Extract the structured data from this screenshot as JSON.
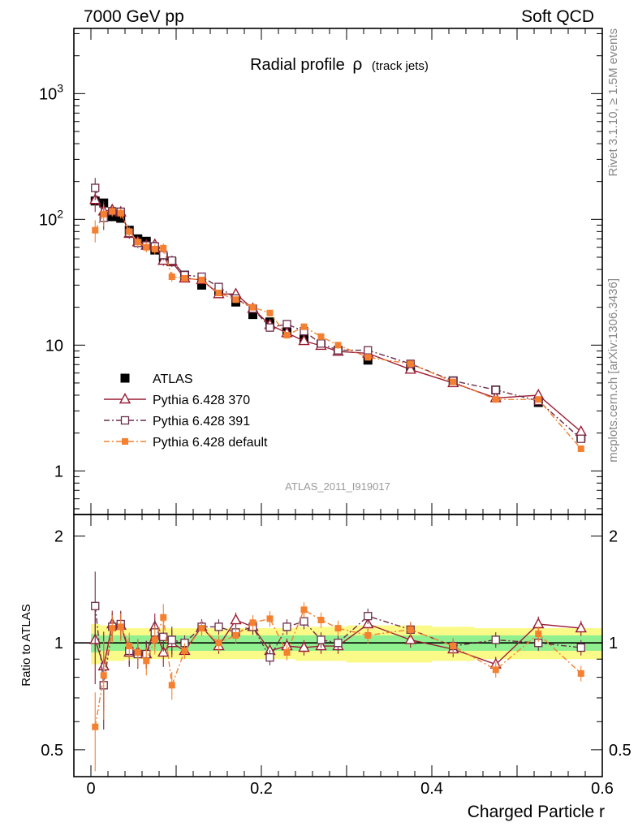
{
  "header": {
    "left": "7000 GeV pp",
    "right": "Soft QCD"
  },
  "side_text": {
    "rivet": "Rivet 3.1.10, ≥ 1.5M events",
    "mcplots": "mcplots.cern.ch [arXiv:1306.3436]"
  },
  "chart_data": [
    {
      "type": "scatter",
      "title": "Radial profile",
      "title_symbol": "ρ",
      "title_suffix": "(track jets)",
      "analysis_label": "ATLAS_2011_I919017",
      "xlabel": "Charged Particle r",
      "ylabel": "",
      "yscale": "log",
      "xlim": [
        -0.02,
        0.6
      ],
      "ylim": [
        0.45,
        3300
      ],
      "yticks": [
        1,
        10,
        100,
        1000
      ],
      "ytick_labels": [
        "1",
        "10",
        "10^2",
        "10^3"
      ],
      "legend_position": "center-left",
      "series": [
        {
          "name": "ATLAS",
          "color": "#000000",
          "marker": "filled-square",
          "line": "none",
          "x": [
            0.005,
            0.015,
            0.025,
            0.035,
            0.045,
            0.055,
            0.065,
            0.075,
            0.085,
            0.095,
            0.11,
            0.13,
            0.15,
            0.17,
            0.19,
            0.21,
            0.23,
            0.25,
            0.27,
            0.29,
            0.325,
            0.375,
            0.425,
            0.475,
            0.525,
            0.575
          ],
          "y": [
            140,
            135,
            105,
            102,
            82,
            70,
            67,
            57,
            50,
            46,
            36,
            30,
            26,
            22,
            17.5,
            15.3,
            12.7,
            11.2,
            10.1,
            9.1,
            7.6,
            6.5,
            5.2,
            4.4,
            3.5,
            1.85
          ]
        },
        {
          "name": "Pythia 6.428 370",
          "color": "#9a1c33",
          "marker": "open-triangle",
          "line": "solid",
          "x": [
            0.005,
            0.015,
            0.025,
            0.035,
            0.045,
            0.055,
            0.065,
            0.075,
            0.085,
            0.095,
            0.11,
            0.13,
            0.15,
            0.17,
            0.19,
            0.21,
            0.23,
            0.25,
            0.27,
            0.29,
            0.325,
            0.375,
            0.425,
            0.475,
            0.525,
            0.575
          ],
          "y": [
            143,
            116,
            119,
            114,
            77,
            66,
            62,
            63,
            47,
            46,
            34,
            33,
            25.5,
            25.5,
            19.5,
            14.5,
            12.5,
            10.8,
            9.9,
            8.9,
            8.6,
            6.4,
            5.0,
            3.8,
            4.0,
            2.05
          ]
        },
        {
          "name": "Pythia 6.428 391",
          "color": "#6b2d4a",
          "marker": "open-square",
          "line": "dashdot",
          "x": [
            0.005,
            0.015,
            0.025,
            0.035,
            0.045,
            0.055,
            0.065,
            0.075,
            0.085,
            0.095,
            0.11,
            0.13,
            0.15,
            0.17,
            0.19,
            0.21,
            0.23,
            0.25,
            0.27,
            0.29,
            0.325,
            0.375,
            0.425,
            0.475,
            0.525,
            0.575
          ],
          "y": [
            178,
            103,
            116,
            115,
            78,
            65,
            62,
            61,
            52,
            47,
            36,
            35,
            29,
            23.5,
            19.5,
            13.8,
            14.7,
            12.9,
            10.3,
            9.1,
            9.1,
            7.1,
            5.2,
            4.4,
            3.6,
            1.8
          ]
        },
        {
          "name": "Pythia 6.428 default",
          "color": "#f48030",
          "marker": "filled-small-square",
          "line": "dashdot",
          "x": [
            0.005,
            0.015,
            0.025,
            0.035,
            0.045,
            0.055,
            0.065,
            0.075,
            0.085,
            0.095,
            0.11,
            0.13,
            0.15,
            0.17,
            0.19,
            0.21,
            0.23,
            0.25,
            0.27,
            0.29,
            0.325,
            0.375,
            0.425,
            0.475,
            0.525,
            0.575
          ],
          "y": [
            82,
            110,
            116,
            112,
            80,
            66,
            60,
            58,
            59,
            35,
            34,
            33,
            26,
            23,
            20,
            18,
            12,
            14,
            11.7,
            10,
            8,
            7.1,
            5.1,
            3.7,
            3.7,
            1.5
          ]
        }
      ]
    },
    {
      "type": "scatter",
      "xlabel": "Charged Particle r",
      "ylabel": "Ratio to ATLAS",
      "yscale": "log",
      "xlim": [
        -0.02,
        0.6
      ],
      "ylim": [
        0.42,
        2.3
      ],
      "yticks": [
        0.5,
        1,
        2
      ],
      "ytick_labels": [
        "0.5",
        "1",
        "2"
      ],
      "xticks": [
        0,
        0.2,
        0.4,
        0.6
      ],
      "xtick_labels": [
        "0",
        "0.2",
        "0.4",
        "0.6"
      ],
      "reference_line": 1,
      "band_colors": {
        "stat": "#90f090",
        "total": "#fafa88"
      },
      "bands_x": [
        0.0,
        0.01,
        0.02,
        0.03,
        0.04,
        0.05,
        0.06,
        0.07,
        0.08,
        0.09,
        0.1,
        0.12,
        0.14,
        0.16,
        0.18,
        0.2,
        0.22,
        0.24,
        0.26,
        0.28,
        0.3,
        0.35,
        0.4,
        0.45,
        0.5,
        0.55,
        0.6
      ],
      "band_stat": [
        0.06,
        0.05,
        0.05,
        0.05,
        0.05,
        0.05,
        0.05,
        0.05,
        0.05,
        0.05,
        0.05,
        0.05,
        0.05,
        0.05,
        0.05,
        0.05,
        0.05,
        0.05,
        0.05,
        0.05,
        0.05,
        0.05,
        0.05,
        0.05,
        0.05,
        0.05
      ],
      "band_total": [
        0.13,
        0.12,
        0.11,
        0.11,
        0.1,
        0.1,
        0.1,
        0.1,
        0.1,
        0.1,
        0.1,
        0.1,
        0.1,
        0.1,
        0.1,
        0.1,
        0.1,
        0.11,
        0.11,
        0.11,
        0.12,
        0.12,
        0.11,
        0.1,
        0.1,
        0.1
      ],
      "series": [
        {
          "name": "Pythia 6.428 370",
          "color": "#9a1c33",
          "marker": "open-triangle",
          "line": "solid",
          "x": [
            0.005,
            0.015,
            0.025,
            0.035,
            0.045,
            0.055,
            0.065,
            0.075,
            0.085,
            0.095,
            0.11,
            0.13,
            0.15,
            0.17,
            0.19,
            0.21,
            0.23,
            0.25,
            0.27,
            0.29,
            0.325,
            0.375,
            0.425,
            0.475,
            0.525,
            0.575
          ],
          "y": [
            1.02,
            0.86,
            1.13,
            1.12,
            0.94,
            0.94,
            0.93,
            1.11,
            0.94,
            1.0,
            0.95,
            1.11,
            0.98,
            1.16,
            1.11,
            0.95,
            0.98,
            0.97,
            0.98,
            0.98,
            1.13,
            1.02,
            0.96,
            0.87,
            1.13,
            1.1
          ]
        },
        {
          "name": "Pythia 6.428 391",
          "color": "#6b2d4a",
          "marker": "open-square",
          "line": "dashdot",
          "x": [
            0.005,
            0.015,
            0.025,
            0.035,
            0.045,
            0.055,
            0.065,
            0.075,
            0.085,
            0.095,
            0.11,
            0.13,
            0.15,
            0.17,
            0.19,
            0.21,
            0.23,
            0.25,
            0.27,
            0.29,
            0.325,
            0.375,
            0.425,
            0.475,
            0.525,
            0.575
          ],
          "y": [
            1.27,
            0.76,
            1.11,
            1.13,
            0.95,
            0.93,
            0.93,
            1.07,
            1.04,
            1.02,
            1.0,
            1.11,
            1.11,
            1.07,
            1.11,
            0.91,
            1.11,
            1.15,
            1.02,
            1.0,
            1.19,
            1.09,
            0.98,
            1.02,
            1.0,
            0.97
          ]
        },
        {
          "name": "Pythia 6.428 default",
          "color": "#f48030",
          "marker": "filled-small-square",
          "line": "dashdot",
          "x": [
            0.005,
            0.015,
            0.025,
            0.035,
            0.045,
            0.055,
            0.065,
            0.075,
            0.085,
            0.095,
            0.11,
            0.13,
            0.15,
            0.17,
            0.19,
            0.21,
            0.23,
            0.25,
            0.27,
            0.29,
            0.325,
            0.375,
            0.425,
            0.475,
            0.525,
            0.575
          ],
          "y": [
            0.58,
            0.81,
            1.1,
            1.11,
            0.98,
            0.94,
            0.89,
            1.02,
            1.18,
            0.76,
            0.95,
            1.1,
            1.0,
            1.05,
            1.14,
            1.17,
            0.94,
            1.24,
            1.16,
            1.1,
            1.05,
            1.09,
            0.98,
            0.84,
            1.06,
            0.82
          ]
        }
      ]
    }
  ]
}
